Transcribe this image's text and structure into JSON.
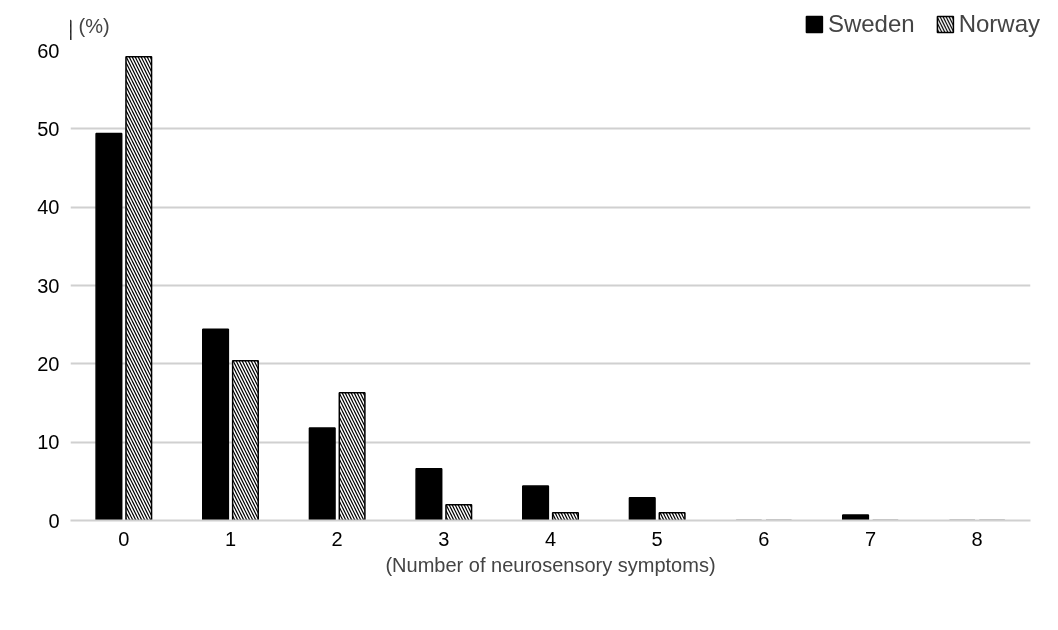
{
  "chart_data": {
    "type": "bar",
    "xlabel": "(Number of neurosensory symptoms)",
    "ylabel": "(%)",
    "categories": [
      "0",
      "1",
      "2",
      "3",
      "4",
      "5",
      "6",
      "7",
      "8"
    ],
    "series": [
      {
        "name": "Sweden",
        "color": "#000000",
        "values": [
          49.4,
          24.4,
          11.8,
          6.6,
          4.4,
          2.9,
          0,
          0.7,
          0
        ]
      },
      {
        "name": "Norway",
        "color": "#000000",
        "values": [
          59.2,
          20.4,
          16.3,
          2.0,
          1.0,
          1.0,
          0,
          0,
          0
        ]
      }
    ],
    "ylim": [
      0,
      60
    ],
    "yticks": [
      0,
      10,
      20,
      30,
      40,
      50,
      60
    ],
    "grid": "y",
    "legend": "top right"
  }
}
